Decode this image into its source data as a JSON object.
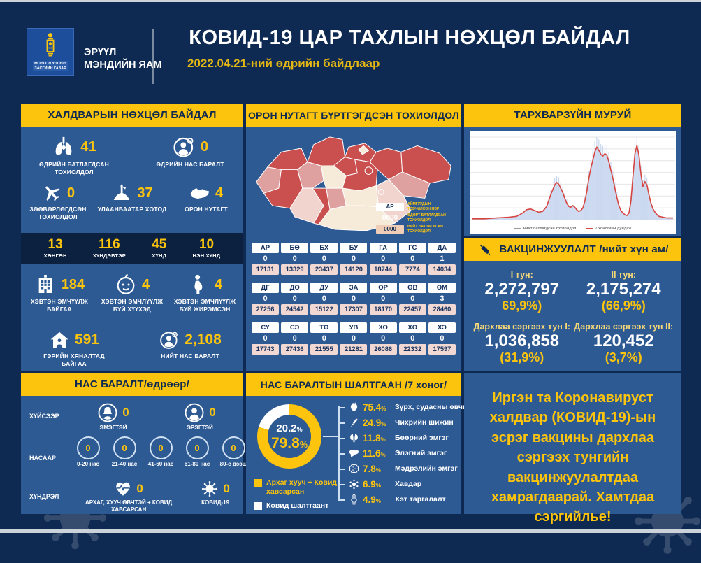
{
  "header": {
    "org_line1": "МОНГОЛ УЛСЫН",
    "org_line2": "ЗАСГИЙН ГАЗАР",
    "ministry": "ЭРҮҮЛ\nМЭНДИЙН ЯАМ",
    "title": "КОВИД-19 ЦАР ТАХЛЫН НӨХЦӨЛ БАЙДАЛ",
    "date": "2022.04.21-ний өдрийн байдлаар"
  },
  "colors": {
    "background_navy": "#0e2a52",
    "panel_blue": "#2e5a94",
    "accent_yellow": "#fcc40d",
    "dark_strip": "#0c2140",
    "table_pink": "#f2d8d2",
    "map_dark_red": "#c9504e",
    "map_medium_pink": "#dfa0a0",
    "map_light_pink": "#f0d4cd",
    "map_cream": "#f6ead9",
    "curve_area_blue": "#c9d7ee",
    "curve_line_red": "#d64541"
  },
  "infection_panel": {
    "title": "ХАЛДВАРЫН НӨХЦӨЛ БАЙДАЛ",
    "row1": [
      {
        "icon": "lungs-icon",
        "value": "41",
        "label": "ӨДРИЙН БАТЛАГДСАН ТОХИОЛДОЛ"
      },
      {
        "icon": "person-loss-icon",
        "value": "0",
        "label": "ӨДРИЙН НАС БАРАЛТ"
      }
    ],
    "row2": [
      {
        "icon": "airplane-icon",
        "value": "0",
        "label": "ЗӨӨВӨРЛӨГДСӨН ТОХИОЛДОЛ"
      },
      {
        "icon": "monument-icon",
        "value": "37",
        "label": "УЛААНБААТАР ХОТОД"
      },
      {
        "icon": "mongolia-icon",
        "value": "4",
        "label": "ОРОН НУТАГТ"
      }
    ],
    "severity": [
      {
        "value": "13",
        "label": "ХӨНГӨН"
      },
      {
        "value": "116",
        "label": "ХҮНДЭВТЭР"
      },
      {
        "value": "45",
        "label": "ХҮНД"
      },
      {
        "value": "10",
        "label": "НЭН ХҮНД"
      }
    ],
    "row3": [
      {
        "icon": "hospital-icon",
        "value": "184",
        "label": "ХЭВТЭН ЭМЧҮҮЛЖ БАЙГАА"
      },
      {
        "icon": "baby-icon",
        "value": "4",
        "label": "ХЭВТЭН ЭМЧЛҮҮЛЖ БУЙ ХҮҮХЭД"
      },
      {
        "icon": "pregnant-icon",
        "value": "4",
        "label": "ХЭВТЭН ЭМЧЛҮҮЛЖ БУЙ ЖИРЭМСЭН"
      }
    ],
    "row4": [
      {
        "icon": "home-icon",
        "value": "591",
        "label": "ГЭРИЙН ХЯНАЛТАД БАЙГАА"
      },
      {
        "icon": "person-loss-icon",
        "value": "2,108",
        "label": "НИЙТ НАС БАРАЛТ"
      }
    ]
  },
  "region_panel": {
    "title": "ОРОН НУТАГТ БҮРТГЭГДСЭН ТОХИОЛДОЛ",
    "legend": [
      {
        "sample": "АР",
        "style": "code",
        "label": "АЙМГУУДЫН ТОВЧИЛСОН НЭР"
      },
      {
        "sample": "0000",
        "style": "plain",
        "label": "ӨДӨРТ БАТЛАГДСАН ТОХИОЛДОЛ"
      },
      {
        "sample": "0000",
        "style": "total",
        "label": "НИЙТ БАТЛАГДСАН ТОХИОЛДОЛ"
      }
    ],
    "groups": [
      {
        "codes": [
          "АР",
          "БӨ",
          "БХ",
          "БУ",
          "ГА",
          "ГС",
          "ДА"
        ],
        "daily": [
          "0",
          "0",
          "0",
          "0",
          "0",
          "0",
          "1"
        ],
        "total": [
          "17131",
          "13329",
          "23437",
          "14120",
          "18744",
          "7774",
          "14034"
        ]
      },
      {
        "codes": [
          "ДГ",
          "ДО",
          "ДУ",
          "ЗА",
          "ОР",
          "ӨВ",
          "ӨМ"
        ],
        "daily": [
          "0",
          "0",
          "0",
          "0",
          "0",
          "0",
          "3"
        ],
        "total": [
          "27256",
          "24542",
          "15122",
          "17307",
          "18170",
          "22457",
          "28460"
        ]
      },
      {
        "codes": [
          "СҮ",
          "СЭ",
          "ТӨ",
          "УВ",
          "ХО",
          "ХӨ",
          "ХЭ"
        ],
        "daily": [
          "0",
          "0",
          "0",
          "0",
          "0",
          "0",
          "0"
        ],
        "total": [
          "17743",
          "27436",
          "21555",
          "21281",
          "26086",
          "22332",
          "17597"
        ]
      }
    ]
  },
  "curve_panel": {
    "title": "ТАРХВАРЗҮЙН МУРУЙ"
  },
  "chart_data": [
    {
      "type": "area",
      "title": "ТАРХВАРЗҮЙН МУРУЙ",
      "grid": true,
      "legend_position": "bottom",
      "ylim": [
        0,
        100
      ],
      "series": [
        {
          "name": "нийт батлагдсан тохиолдол",
          "type": "area-bars",
          "color": "#c9d7ee"
        },
        {
          "name": "7 хоногийн дундаж",
          "type": "line",
          "color": "#d64541"
        }
      ],
      "points": [
        [
          0,
          1
        ],
        [
          6,
          1
        ],
        [
          12,
          2
        ],
        [
          18,
          3
        ],
        [
          22,
          4
        ],
        [
          25,
          8
        ],
        [
          27,
          12
        ],
        [
          29,
          13
        ],
        [
          31,
          11
        ],
        [
          33,
          9
        ],
        [
          35,
          10
        ],
        [
          37,
          16
        ],
        [
          39,
          30
        ],
        [
          41,
          42
        ],
        [
          42,
          45
        ],
        [
          43,
          43
        ],
        [
          44,
          38
        ],
        [
          45,
          33
        ],
        [
          46,
          26
        ],
        [
          47,
          20
        ],
        [
          48,
          16
        ],
        [
          49,
          15
        ],
        [
          50,
          17
        ],
        [
          51,
          15
        ],
        [
          52,
          12
        ],
        [
          53,
          10
        ],
        [
          54,
          11
        ],
        [
          55,
          14
        ],
        [
          56,
          22
        ],
        [
          57,
          34
        ],
        [
          58,
          50
        ],
        [
          59,
          62
        ],
        [
          60,
          72
        ],
        [
          61,
          82
        ],
        [
          62,
          88
        ],
        [
          63,
          84
        ],
        [
          64,
          79
        ],
        [
          65,
          77
        ],
        [
          66,
          80
        ],
        [
          67,
          78
        ],
        [
          68,
          70
        ],
        [
          69,
          60
        ],
        [
          70,
          50
        ],
        [
          71,
          38
        ],
        [
          72,
          27
        ],
        [
          73,
          17
        ],
        [
          74,
          11
        ],
        [
          75,
          8
        ],
        [
          76,
          6
        ],
        [
          77,
          5
        ],
        [
          78,
          8
        ],
        [
          79,
          22
        ],
        [
          80,
          52
        ],
        [
          81,
          80
        ],
        [
          82,
          90
        ],
        [
          83,
          78
        ],
        [
          84,
          55
        ],
        [
          85,
          40
        ],
        [
          86,
          46
        ],
        [
          87,
          42
        ],
        [
          88,
          30
        ],
        [
          89,
          20
        ],
        [
          90,
          13
        ],
        [
          91,
          9
        ],
        [
          92,
          6
        ],
        [
          93,
          4
        ],
        [
          95,
          3
        ],
        [
          97,
          2
        ],
        [
          100,
          2
        ]
      ]
    },
    {
      "type": "pie",
      "title": "НАС БАРАЛТЫН ШАЛТГААН /7 хоног/",
      "labels": [
        "Архаг хууч + Ковид хавсарсан",
        "Ковид шалтгаант"
      ],
      "values": [
        79.8,
        20.2
      ],
      "colors": [
        "#fcc40d",
        "#ffffff"
      ]
    }
  ],
  "vaccination_panel": {
    "title": "ВАКЦИНЖУУЛАЛТ /нийт хүн ам/",
    "icon": "syringe-icon",
    "stats": [
      {
        "label": "I тун:",
        "value": "2,272,797",
        "pct": "69,9%)"
      },
      {
        "label": "II тун:",
        "value": "2,175,274",
        "pct": "(66,9%)"
      },
      {
        "label": "Дархлаа сэргээх тун I:",
        "value": "1,036,858",
        "pct": "(31,9%)"
      },
      {
        "label": "Дархлаа сэргээх тун II:",
        "value": "120,452",
        "pct": "(3,7%)"
      }
    ]
  },
  "deaths_panel": {
    "title": "НАС БАРАЛТ/өдрөөр/",
    "rows": [
      {
        "side_label": "ХҮЙСЭЭР",
        "items": [
          {
            "icon": "female-icon",
            "value": "0",
            "label": "ЭМЭГТЭЙ"
          },
          {
            "icon": "male-icon",
            "value": "0",
            "label": "ЭРЭГТЭЙ"
          }
        ]
      },
      {
        "side_label": "НАСААР",
        "items": [
          {
            "value": "0",
            "label": "0-20 нас"
          },
          {
            "value": "0",
            "label": "21-40 нас"
          },
          {
            "value": "0",
            "label": "41-60 нас"
          },
          {
            "value": "0",
            "label": "61-80 нас"
          },
          {
            "value": "0",
            "label": "80-с дээш"
          }
        ]
      },
      {
        "side_label": "ХҮНДРЭЛ",
        "items": [
          {
            "icon": "heart-pulse-icon",
            "value": "0",
            "label": "АРХАГ, ХУУЧ ӨВЧТЭЙ + КОВИД ХАВСАРСАН"
          },
          {
            "icon": "virus-icon",
            "value": "0",
            "label": "КОВИД-19"
          }
        ]
      }
    ]
  },
  "causes_panel": {
    "title": "НАС БАРАЛТЫН ШАЛТГААН /7 хоног/",
    "donut": {
      "inner_top": "20.2",
      "inner_bottom": "79.8"
    },
    "legend": [
      {
        "swatch": "#fcc40d",
        "label": "Архаг хууч + Ковид хавсарсан"
      },
      {
        "swatch": "#ffffff",
        "label": "Ковид шалтгаант"
      }
    ],
    "items": [
      {
        "icon": "anatomical-heart-icon",
        "value": "75.4",
        "label": "Зүрх, судасны өвчин"
      },
      {
        "icon": "insulin-pen-icon",
        "value": "24.9",
        "label": "Чихрийн шижин"
      },
      {
        "icon": "kidneys-icon",
        "value": "11.8",
        "label": "Бөөрний эмгэг"
      },
      {
        "icon": "liver-icon",
        "value": "11.6",
        "label": "Элэгний эмгэг"
      },
      {
        "icon": "brain-icon",
        "value": "7.8",
        "label": "Мэдрэлийн эмгэг"
      },
      {
        "icon": "cancer-cell-icon",
        "value": "6.9",
        "label": "Хавдар"
      },
      {
        "icon": "obesity-icon",
        "value": "4.9",
        "label": "Хэт таргалалт"
      }
    ]
  },
  "message_panel": {
    "text": "Иргэн та Коронавируст халдвар (КОВИД-19)-ын эсрэг вакцины дархлаа сэргээх тунгийн вакцинжуулалтдаа хамрагдаарай. Хамтдаа сэргийлье!"
  }
}
